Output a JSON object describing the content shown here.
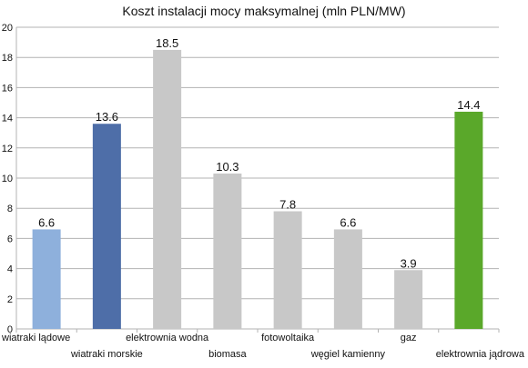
{
  "chart_data": {
    "type": "bar",
    "title": "Koszt instalacji mocy maksymalnej (mln PLN/MW)",
    "xlabel": "",
    "ylabel": "",
    "ylim": [
      0,
      20
    ],
    "yticks": [
      0,
      2,
      4,
      6,
      8,
      10,
      12,
      14,
      16,
      18,
      20
    ],
    "grid": true,
    "legend": "none",
    "categories": [
      "wiatraki lądowe",
      "wiatraki morskie",
      "elektrownia wodna",
      "biomasa",
      "fotowoltaika",
      "węgiel kamienny",
      "gaz",
      "elektrownia jądrowa"
    ],
    "values": [
      6.6,
      13.6,
      18.5,
      10.3,
      7.8,
      6.6,
      3.9,
      14.4
    ],
    "data_labels": [
      "6.6",
      "13.6",
      "18.5",
      "10.3",
      "7.8",
      "6.6",
      "3.9",
      "14.4"
    ],
    "colors": [
      "#8eb0dc",
      "#4e6ea8",
      "#c8c8c8",
      "#c8c8c8",
      "#c8c8c8",
      "#c8c8c8",
      "#c8c8c8",
      "#5aa82a"
    ],
    "label_row": [
      "upper",
      "lower",
      "upper",
      "lower",
      "upper",
      "lower",
      "upper",
      "lower"
    ]
  }
}
